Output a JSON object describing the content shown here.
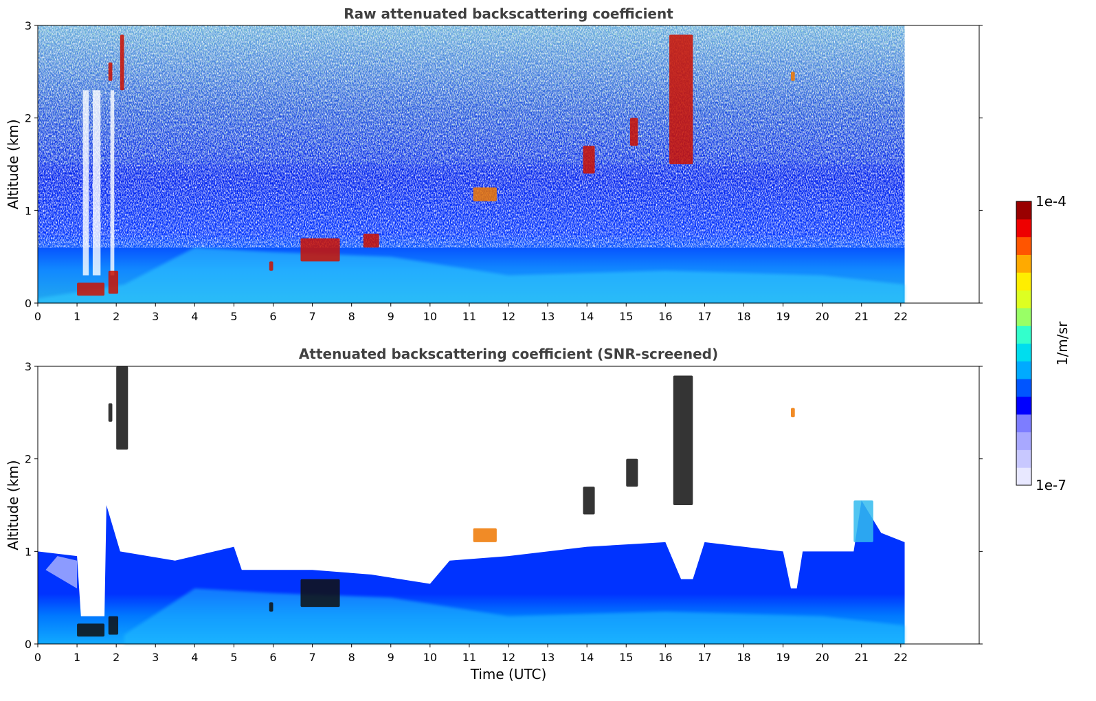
{
  "chart_data": [
    {
      "type": "heatmap",
      "title": "Raw attenuated backscattering coefficient",
      "xlabel": "",
      "ylabel": "Altitude (km)",
      "xlim": [
        0,
        24
      ],
      "ylim": [
        0,
        3
      ],
      "x_ticks": [
        "0",
        "1",
        "2",
        "3",
        "4",
        "5",
        "6",
        "7",
        "8",
        "9",
        "10",
        "11",
        "12",
        "13",
        "14",
        "15",
        "16",
        "17",
        "18",
        "19",
        "20",
        "21",
        "22"
      ],
      "y_ticks": [
        "0",
        "1",
        "2",
        "3"
      ],
      "data_extent_time": [
        0,
        22.1
      ],
      "colormap": "jet",
      "features": [
        {
          "time": [
            1.0,
            1.7
          ],
          "altitude": [
            0.08,
            0.22
          ],
          "level": "high"
        },
        {
          "time": [
            1.8,
            2.05
          ],
          "altitude": [
            0.1,
            0.35
          ],
          "level": "high"
        },
        {
          "time": [
            1.8,
            1.9
          ],
          "altitude": [
            2.4,
            2.6
          ],
          "level": "high"
        },
        {
          "time": [
            2.1,
            2.2
          ],
          "altitude": [
            2.3,
            2.9
          ],
          "level": "high"
        },
        {
          "time": [
            5.9,
            6.0
          ],
          "altitude": [
            0.35,
            0.45
          ],
          "level": "high"
        },
        {
          "time": [
            6.7,
            7.7
          ],
          "altitude": [
            0.45,
            0.7
          ],
          "level": "high"
        },
        {
          "time": [
            8.3,
            8.7
          ],
          "altitude": [
            0.6,
            0.75
          ],
          "level": "high"
        },
        {
          "time": [
            11.1,
            11.7
          ],
          "altitude": [
            1.1,
            1.25
          ],
          "level": "medium"
        },
        {
          "time": [
            13.9,
            14.2
          ],
          "altitude": [
            1.4,
            1.7
          ],
          "level": "high"
        },
        {
          "time": [
            15.1,
            15.3
          ],
          "altitude": [
            1.7,
            2.0
          ],
          "level": "high"
        },
        {
          "time": [
            16.1,
            16.7
          ],
          "altitude": [
            1.5,
            2.9
          ],
          "level": "high"
        },
        {
          "time": [
            19.2,
            19.3
          ],
          "altitude": [
            2.4,
            2.5
          ],
          "level": "medium"
        }
      ]
    },
    {
      "type": "heatmap",
      "title": "Attenuated backscattering coefficient (SNR-screened)",
      "xlabel": "Time (UTC)",
      "ylabel": "Altitude (km)",
      "xlim": [
        0,
        24
      ],
      "ylim": [
        0,
        3
      ],
      "x_ticks": [
        "0",
        "1",
        "2",
        "3",
        "4",
        "5",
        "6",
        "7",
        "8",
        "9",
        "10",
        "11",
        "12",
        "13",
        "14",
        "15",
        "16",
        "17",
        "18",
        "19",
        "20",
        "21",
        "22"
      ],
      "y_ticks": [
        "0",
        "1",
        "2",
        "3"
      ],
      "data_extent_time": [
        0,
        22.1
      ],
      "colormap": "jet",
      "features": [
        {
          "time": [
            1.0,
            1.7
          ],
          "altitude": [
            0.08,
            0.22
          ],
          "level": "saturated"
        },
        {
          "time": [
            1.8,
            2.05
          ],
          "altitude": [
            0.1,
            0.3
          ],
          "level": "saturated"
        },
        {
          "time": [
            1.8,
            1.9
          ],
          "altitude": [
            2.4,
            2.6
          ],
          "level": "saturated"
        },
        {
          "time": [
            2.0,
            2.3
          ],
          "altitude": [
            2.1,
            3.0
          ],
          "level": "saturated"
        },
        {
          "time": [
            5.9,
            6.0
          ],
          "altitude": [
            0.35,
            0.45
          ],
          "level": "saturated"
        },
        {
          "time": [
            6.7,
            7.7
          ],
          "altitude": [
            0.4,
            0.7
          ],
          "level": "saturated"
        },
        {
          "time": [
            11.1,
            11.7
          ],
          "altitude": [
            1.1,
            1.25
          ],
          "level": "medium"
        },
        {
          "time": [
            13.9,
            14.2
          ],
          "altitude": [
            1.4,
            1.7
          ],
          "level": "saturated"
        },
        {
          "time": [
            15.0,
            15.3
          ],
          "altitude": [
            1.7,
            2.0
          ],
          "level": "saturated"
        },
        {
          "time": [
            16.2,
            16.7
          ],
          "altitude": [
            1.5,
            2.9
          ],
          "level": "saturated"
        },
        {
          "time": [
            19.2,
            19.3
          ],
          "altitude": [
            2.45,
            2.55
          ],
          "level": "medium"
        },
        {
          "time": [
            20.8,
            21.3
          ],
          "altitude": [
            1.1,
            1.55
          ],
          "level": "low-medium"
        }
      ]
    }
  ],
  "colorbar": {
    "label": "1/m/sr",
    "max_label": "1e-4",
    "min_label": "1e-7",
    "colors": [
      "#e8e8ff",
      "#c8c8ff",
      "#a8a8ff",
      "#7d7dff",
      "#0000ff",
      "#0055ff",
      "#00aaff",
      "#00ddee",
      "#33ffcc",
      "#99ff66",
      "#ddff22",
      "#ffee00",
      "#ffaa00",
      "#ff5500",
      "#ee0000",
      "#990000"
    ]
  }
}
